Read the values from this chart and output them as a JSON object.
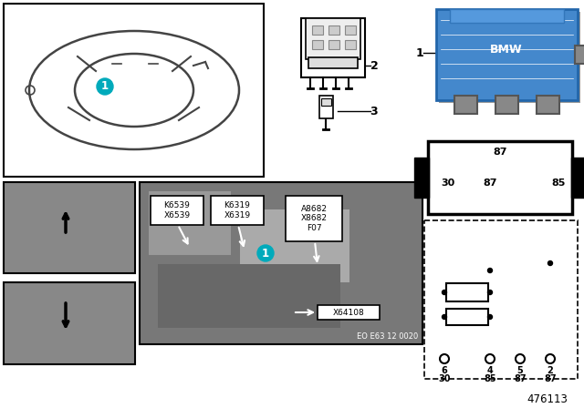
{
  "bg": "#ffffff",
  "teal": "#00AABB",
  "relay_blue": "#4488CC",
  "gray_photo": "#909090",
  "dark_gray": "#555555",
  "black": "#000000",
  "white": "#ffffff",
  "doc_num": "476113",
  "eo_num": "EO E63 12 0020",
  "item1": "1",
  "item2": "2",
  "item3": "3",
  "label_x64108": "X64108",
  "labels_callout": [
    "K6539\nX6539",
    "K6319\nX6319",
    "A8682\nX8682\nF07"
  ],
  "pin_mid": [
    "30",
    "87",
    "85"
  ],
  "pin_top": "87",
  "term_top": [
    "6",
    "4",
    "5",
    "2"
  ],
  "term_bot": [
    "30",
    "85",
    "87",
    "87"
  ]
}
